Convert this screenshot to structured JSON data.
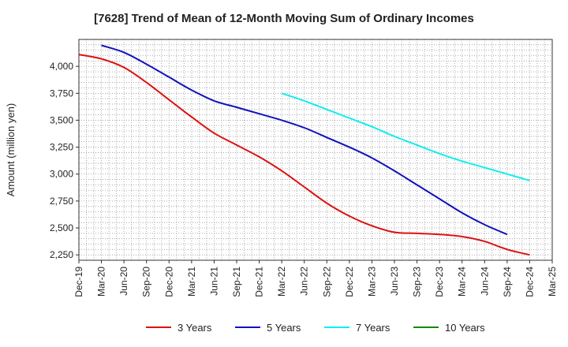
{
  "chart_data": {
    "type": "line",
    "title": "[7628]  Trend of Mean of 12-Month Moving Sum of Ordinary Incomes",
    "xlabel": "",
    "ylabel": "Amount (million yen)",
    "ylim": [
      2200,
      4250
    ],
    "yticks": [
      2250,
      2500,
      2750,
      3000,
      3250,
      3500,
      3750,
      4000
    ],
    "ytick_labels": [
      "2,250",
      "2,500",
      "2,750",
      "3,000",
      "3,250",
      "3,500",
      "3,750",
      "4,000"
    ],
    "x_categories": [
      "Dec-19",
      "Mar-20",
      "Jun-20",
      "Sep-20",
      "Dec-20",
      "Mar-21",
      "Jun-21",
      "Sep-21",
      "Dec-21",
      "Mar-22",
      "Jun-22",
      "Sep-22",
      "Dec-22",
      "Mar-23",
      "Jun-23",
      "Sep-23",
      "Dec-23",
      "Mar-24",
      "Jun-24",
      "Sep-24",
      "Dec-24",
      "Mar-25"
    ],
    "grid": true,
    "legend_position": "bottom",
    "series": [
      {
        "name": "3 Years",
        "color": "#dd1111",
        "start_index": 0,
        "values": [
          4110,
          4070,
          3990,
          3850,
          3690,
          3530,
          3380,
          3270,
          3160,
          3030,
          2880,
          2730,
          2610,
          2520,
          2460,
          2450,
          2440,
          2420,
          2375,
          2300,
          2250
        ]
      },
      {
        "name": "5 Years",
        "color": "#1111bb",
        "start_index": 1,
        "values": [
          4195,
          4130,
          4020,
          3900,
          3780,
          3680,
          3620,
          3560,
          3500,
          3430,
          3340,
          3250,
          3150,
          3030,
          2900,
          2770,
          2640,
          2530,
          2440
        ]
      },
      {
        "name": "7 Years",
        "color": "#11eeee",
        "start_index": 9,
        "values": [
          3750,
          3680,
          3600,
          3520,
          3440,
          3350,
          3270,
          3190,
          3120,
          3060,
          3000,
          2940
        ]
      },
      {
        "name": "10 Years",
        "color": "#118811",
        "start_index": 0,
        "values": []
      }
    ]
  }
}
